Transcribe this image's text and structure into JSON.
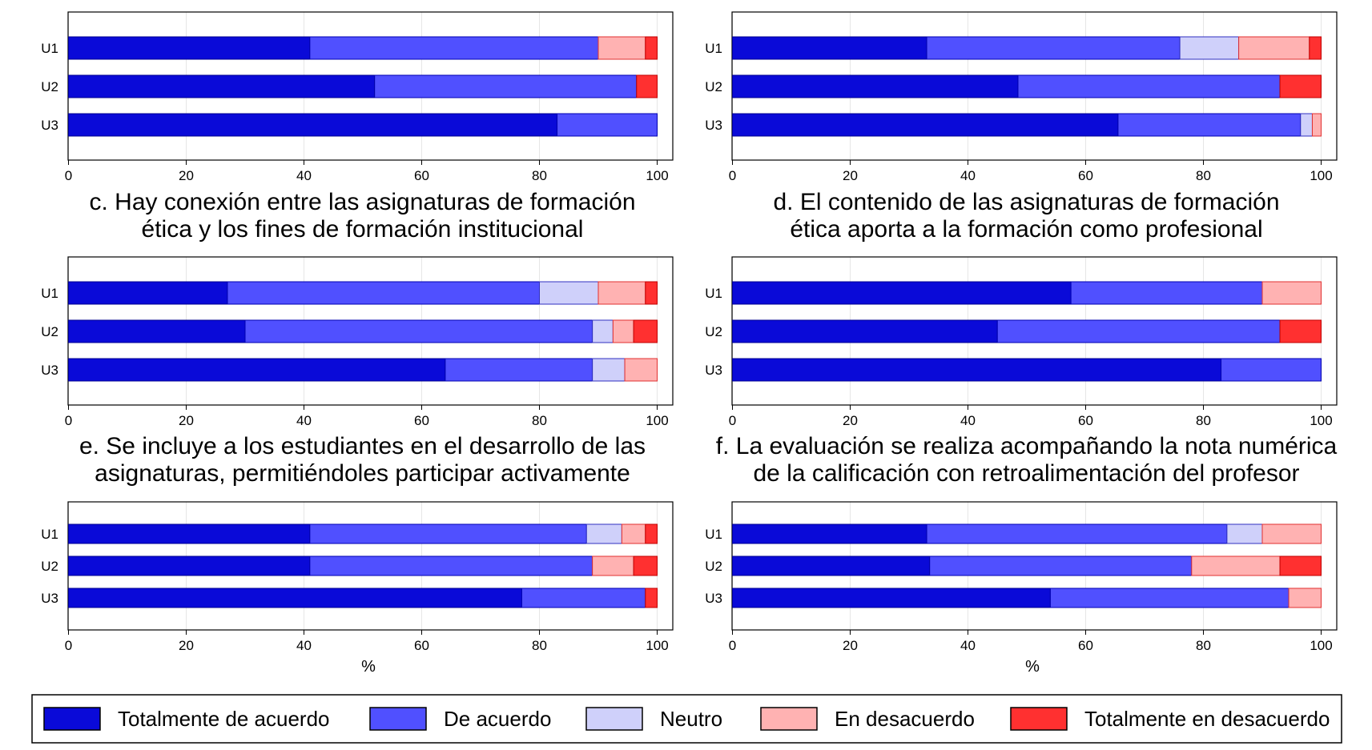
{
  "legend": [
    {
      "name": "Totalmente de acuerdo",
      "color": "#0a0ad8",
      "stroke": "#000090"
    },
    {
      "name": "De acuerdo",
      "color": "#5050ff",
      "stroke": "#0000b0"
    },
    {
      "name": "Neutro",
      "color": "#cfd0fa",
      "stroke": "#3030c0"
    },
    {
      "name": "En desacuerdo",
      "color": "#ffb2b2",
      "stroke": "#e03030"
    },
    {
      "name": "Totalmente en desacuerdo",
      "color": "#ff3030",
      "stroke": "#c00000"
    }
  ],
  "chart_data": [
    {
      "type": "bar",
      "orientation": "horizontal",
      "stacked": true,
      "title": "",
      "categories": [
        "U1",
        "U2",
        "U3"
      ],
      "xlim": [
        0,
        100
      ],
      "xticks": [
        0,
        20,
        40,
        60,
        80,
        100
      ],
      "xlabel": "",
      "series": [
        {
          "name": "Totalmente de acuerdo",
          "values": [
            41,
            52,
            83
          ]
        },
        {
          "name": "De acuerdo",
          "values": [
            49,
            44.5,
            17
          ]
        },
        {
          "name": "Neutro",
          "values": [
            0,
            0,
            0
          ]
        },
        {
          "name": "En desacuerdo",
          "values": [
            8,
            0,
            0
          ]
        },
        {
          "name": "Totalmente en desacuerdo",
          "values": [
            2,
            3.5,
            0
          ]
        }
      ]
    },
    {
      "type": "bar",
      "orientation": "horizontal",
      "stacked": true,
      "title": "",
      "categories": [
        "U1",
        "U2",
        "U3"
      ],
      "xlim": [
        0,
        100
      ],
      "xticks": [
        0,
        20,
        40,
        60,
        80,
        100
      ],
      "xlabel": "",
      "series": [
        {
          "name": "Totalmente de acuerdo",
          "values": [
            33,
            48.5,
            65.5
          ]
        },
        {
          "name": "De acuerdo",
          "values": [
            43,
            44.5,
            31
          ]
        },
        {
          "name": "Neutro",
          "values": [
            10,
            0,
            2
          ]
        },
        {
          "name": "En desacuerdo",
          "values": [
            12,
            0,
            1.5
          ]
        },
        {
          "name": "Totalmente en desacuerdo",
          "values": [
            2,
            7,
            0
          ]
        }
      ]
    },
    {
      "type": "bar",
      "orientation": "horizontal",
      "stacked": true,
      "title": "c. Hay conexión entre las asignaturas de formación ética y los fines de formación institucional",
      "title_lines": [
        "c. Hay conexión entre las asignaturas de formación",
        "ética y los fines de formación institucional"
      ],
      "categories": [
        "U1",
        "U2",
        "U3"
      ],
      "xlim": [
        0,
        100
      ],
      "xticks": [
        0,
        20,
        40,
        60,
        80,
        100
      ],
      "xlabel": "",
      "series": [
        {
          "name": "Totalmente de acuerdo",
          "values": [
            27,
            30,
            64
          ]
        },
        {
          "name": "De acuerdo",
          "values": [
            53,
            59,
            25
          ]
        },
        {
          "name": "Neutro",
          "values": [
            10,
            3.5,
            5.5
          ]
        },
        {
          "name": "En desacuerdo",
          "values": [
            8,
            3.5,
            5.5
          ]
        },
        {
          "name": "Totalmente en desacuerdo",
          "values": [
            2,
            4,
            0
          ]
        }
      ]
    },
    {
      "type": "bar",
      "orientation": "horizontal",
      "stacked": true,
      "title": "d. El contenido de las asignaturas de formación ética aporta a la formación como profesional",
      "title_lines": [
        "d. El contenido de las asignaturas de formación",
        "ética aporta a la formación como profesional"
      ],
      "categories": [
        "U1",
        "U2",
        "U3"
      ],
      "xlim": [
        0,
        100
      ],
      "xticks": [
        0,
        20,
        40,
        60,
        80,
        100
      ],
      "xlabel": "",
      "series": [
        {
          "name": "Totalmente de acuerdo",
          "values": [
            57.5,
            45,
            83
          ]
        },
        {
          "name": "De acuerdo",
          "values": [
            32.5,
            48,
            17
          ]
        },
        {
          "name": "Neutro",
          "values": [
            0,
            0,
            0
          ]
        },
        {
          "name": "En desacuerdo",
          "values": [
            10,
            0,
            0
          ]
        },
        {
          "name": "Totalmente en desacuerdo",
          "values": [
            0,
            7,
            0
          ]
        }
      ]
    },
    {
      "type": "bar",
      "orientation": "horizontal",
      "stacked": true,
      "title": "e. Se incluye a los estudiantes en el desarrollo de las asignaturas, permitiéndoles participar activamente",
      "title_lines": [
        "e. Se incluye a los estudiantes en el desarrollo de las",
        "asignaturas, permitiéndoles participar activamente"
      ],
      "categories": [
        "U1",
        "U2",
        "U3"
      ],
      "xlim": [
        0,
        100
      ],
      "xticks": [
        0,
        20,
        40,
        60,
        80,
        100
      ],
      "xlabel": "%",
      "series": [
        {
          "name": "Totalmente de acuerdo",
          "values": [
            41,
            41,
            77
          ]
        },
        {
          "name": "De acuerdo",
          "values": [
            47,
            48,
            21
          ]
        },
        {
          "name": "Neutro",
          "values": [
            6,
            0,
            0
          ]
        },
        {
          "name": "En desacuerdo",
          "values": [
            4,
            7,
            0
          ]
        },
        {
          "name": "Totalmente en desacuerdo",
          "values": [
            2,
            4,
            2
          ]
        }
      ]
    },
    {
      "type": "bar",
      "orientation": "horizontal",
      "stacked": true,
      "title": "f. La evaluación se realiza acompañando la nota numérica de la calificación con retroalimentación del profesor",
      "title_lines": [
        "f. La evaluación se realiza acompañando la nota numérica",
        "de la calificación con retroalimentación del profesor"
      ],
      "categories": [
        "U1",
        "U2",
        "U3"
      ],
      "xlim": [
        0,
        100
      ],
      "xticks": [
        0,
        20,
        40,
        60,
        80,
        100
      ],
      "xlabel": "%",
      "series": [
        {
          "name": "Totalmente de acuerdo",
          "values": [
            33,
            33.5,
            54
          ]
        },
        {
          "name": "De acuerdo",
          "values": [
            51,
            44.5,
            40.5
          ]
        },
        {
          "name": "Neutro",
          "values": [
            6,
            0,
            0
          ]
        },
        {
          "name": "En desacuerdo",
          "values": [
            10,
            15,
            5.5
          ]
        },
        {
          "name": "Totalmente en desacuerdo",
          "values": [
            0,
            7,
            0
          ]
        }
      ]
    }
  ]
}
